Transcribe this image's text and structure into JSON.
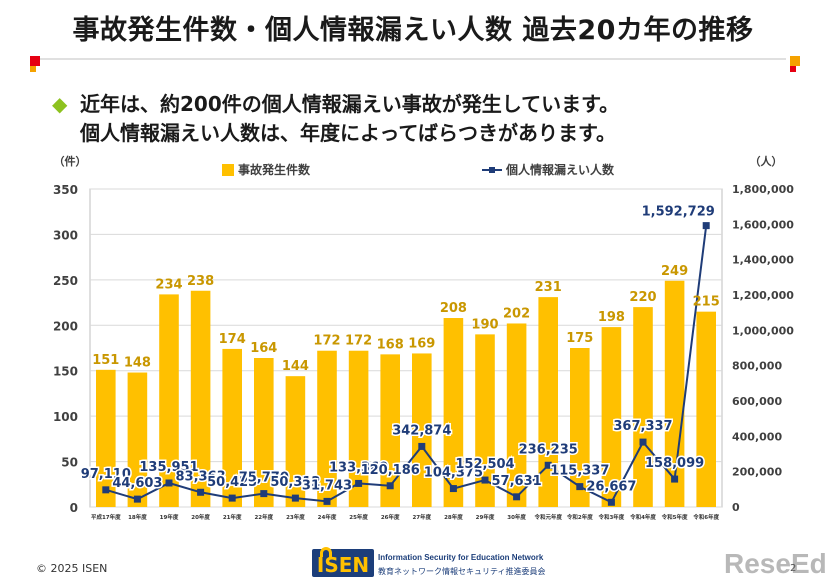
{
  "header": {
    "title": "事故発生件数・個人情報漏えい人数 過去20カ年の推移",
    "bullet_line1": "近年は、約200件の個人情報漏えい事故が発生しています。",
    "bullet_line2": "個人情報漏えい人数は、年度によってばらつきがあります。"
  },
  "colors": {
    "bar": "#ffc000",
    "line": "#1f3c78",
    "bar_label": "#c99700",
    "accent_red": "#e60012",
    "accent_orange": "#f5a200"
  },
  "chart_data": {
    "type": "bar",
    "categories": [
      "平成17年度",
      "18年度",
      "19年度",
      "20年度",
      "21年度",
      "22年度",
      "23年度",
      "24年度",
      "25年度",
      "26年度",
      "27年度",
      "28年度",
      "29年度",
      "30年度",
      "令和元年度",
      "令和2年度",
      "令和3年度",
      "令和4年度",
      "令和5年度",
      "令和6年度"
    ],
    "series": [
      {
        "name": "事故発生件数",
        "type": "bar",
        "axis": "left",
        "values": [
          151,
          148,
          234,
          238,
          174,
          164,
          144,
          172,
          172,
          168,
          169,
          208,
          190,
          202,
          231,
          175,
          198,
          220,
          249,
          215
        ]
      },
      {
        "name": "個人情報漏えい人数",
        "type": "line",
        "axis": "right",
        "values": [
          97110,
          44603,
          135951,
          83363,
          50423,
          75770,
          50312,
          31743,
          133360,
          120186,
          342874,
          104375,
          152504,
          57631,
          236235,
          115337,
          26667,
          367337,
          158099,
          1592729
        ],
        "labels": [
          "97,110",
          "44,603",
          "135,951",
          "83,363",
          "50,423",
          "75,770",
          "50,312",
          "31,743",
          "133,360",
          "120,186",
          "342,874",
          "104,375",
          "152,504",
          "57,631",
          "236,235",
          "115,337",
          "26,667",
          "367,337",
          "158,099",
          "1,592,729"
        ]
      }
    ],
    "y_left": {
      "unit": "（件）",
      "lim": [
        0,
        350
      ],
      "ticks": [
        "0",
        "50",
        "100",
        "150",
        "200",
        "250",
        "300",
        "350"
      ]
    },
    "y_right": {
      "unit": "（人）",
      "lim": [
        0,
        1800000
      ],
      "ticks": [
        "0",
        "200,000",
        "400,000",
        "600,000",
        "800,000",
        "1,000,000",
        "1,200,000",
        "1,400,000",
        "1,600,000",
        "1,800,000"
      ]
    },
    "legend": {
      "bar_label": "事故発生件数",
      "line_label": "個人情報漏えい人数",
      "placement": "top"
    },
    "grid": true
  },
  "footer": {
    "copyright": "© 2025 ISEN",
    "logo_text": "ISEN",
    "org_en": "Information Security for Education Network",
    "org_ja": "教育ネットワーク情報セキュリティ推進委員会",
    "watermark": "ReseEd",
    "page": "2"
  }
}
